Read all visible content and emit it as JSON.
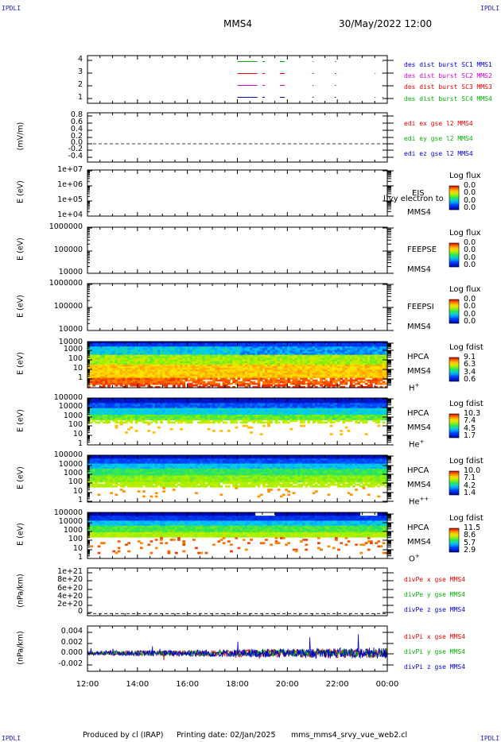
{
  "header": {
    "corner_left": "IPDLI",
    "corner_right": "IPDLI",
    "spacecraft": "MMS4",
    "datetime": "30/May/2022 12:00"
  },
  "footer": {
    "produced_by": "Produced by cl (IRAP)",
    "printing_date": "Printing date: 02/Jan/2025",
    "filename": "mms_mms4_srvy_vue_web2.cl",
    "corner_left": "IPDLI",
    "corner_right": "IPDLI"
  },
  "x_axis": {
    "ticks": [
      "12:00",
      "14:00",
      "16:00",
      "18:00",
      "20:00",
      "22:00",
      "00:00"
    ],
    "range_hours": [
      12,
      24
    ]
  },
  "colors": {
    "blue": "#0000c8",
    "red": "#e00000",
    "green": "#00b000",
    "magenta": "#d000d0"
  },
  "chart_data": [
    {
      "type": "line",
      "id": "burst",
      "y_ticks": [
        "4",
        "3",
        "2",
        "1"
      ],
      "ylim": [
        0.5,
        4.5
      ],
      "legend": [
        {
          "label": "des dist burst SC1 MMS1",
          "color": "#0000c8"
        },
        {
          "label": "des dist burst SC2 MMS2",
          "color": "#d000d0"
        },
        {
          "label": "des dist burst SC3 MMS3",
          "color": "#e00000"
        },
        {
          "label": "des dist burst SC4 MMS4",
          "color": "#00b000"
        }
      ],
      "series": [
        {
          "level": 4,
          "color": "#00b000",
          "segments": [
            [
              18.0,
              18.8
            ],
            [
              19.0,
              19.1
            ],
            [
              19.7,
              19.9
            ],
            [
              21.0,
              21.05
            ],
            [
              21.9,
              21.95
            ],
            [
              23.8,
              23.83
            ]
          ]
        },
        {
          "level": 3,
          "color": "#e00000",
          "segments": [
            [
              18.0,
              18.8
            ],
            [
              19.0,
              19.1
            ],
            [
              19.7,
              19.9
            ],
            [
              21.0,
              21.05
            ],
            [
              21.9,
              21.95
            ],
            [
              23.5,
              23.53
            ],
            [
              23.8,
              23.83
            ]
          ]
        },
        {
          "level": 2,
          "color": "#d000d0",
          "segments": [
            [
              18.0,
              18.8
            ],
            [
              19.0,
              19.1
            ],
            [
              19.7,
              19.9
            ],
            [
              21.0,
              21.05
            ],
            [
              21.9,
              21.95
            ],
            [
              23.8,
              23.83
            ]
          ]
        },
        {
          "level": 1,
          "color": "#0000c8",
          "segments": [
            [
              18.0,
              18.8
            ],
            [
              19.0,
              19.1
            ],
            [
              19.7,
              19.9
            ],
            [
              21.0,
              21.05
            ],
            [
              21.9,
              21.95
            ],
            [
              23.5,
              23.53
            ],
            [
              23.8,
              23.83
            ]
          ]
        }
      ]
    },
    {
      "type": "line",
      "id": "edi",
      "ylabel": "(mV/m)",
      "y_ticks": [
        "0.8",
        "0.6",
        "0.4",
        "0.2",
        "0.0",
        "-0.2",
        "-0.4"
      ],
      "ylim": [
        -0.5,
        0.85
      ],
      "zero_line": 0.0,
      "legend": [
        {
          "label": "edi ex gse l2 MMS4",
          "color": "#e00000"
        },
        {
          "label": "edi ey gse l2 MMS4",
          "color": "#00b000"
        },
        {
          "label": "edi ez gse l2 MMS4",
          "color": "#0000c8"
        }
      ]
    },
    {
      "type": "heatmap",
      "id": "eis",
      "ylabel": "E (eV)",
      "y_ticks": [
        "1e+07",
        "1e+06",
        "1e+05",
        "1e+04"
      ],
      "log": true,
      "instrument": [
        "EIS",
        "MMS4"
      ],
      "overlay_text": "l)vy electron to",
      "cbar_title": "Log flux",
      "cbar_values": [
        "0.0",
        "0.0",
        "0.0",
        "0.0"
      ],
      "empty": true
    },
    {
      "type": "heatmap",
      "id": "feepse",
      "ylabel": "E (eV)",
      "y_ticks": [
        "1000000",
        "100000",
        "10000"
      ],
      "log": true,
      "instrument": [
        "FEEPSE",
        "MMS4"
      ],
      "cbar_title": "Log flux",
      "cbar_values": [
        "0.0",
        "0.0",
        "0.0",
        "0.0"
      ],
      "empty": true
    },
    {
      "type": "heatmap",
      "id": "feepsi",
      "ylabel": "E (eV)",
      "y_ticks": [
        "1000000",
        "100000",
        "10000"
      ],
      "log": true,
      "instrument": [
        "FEEPSI",
        "MMS4"
      ],
      "cbar_title": "Log flux",
      "cbar_values": [
        "0.0",
        "0.0",
        "0.0",
        "0.0"
      ],
      "empty": true
    },
    {
      "type": "heatmap",
      "id": "hpca_h",
      "ylabel": "E (eV)",
      "y_ticks": [
        "10000",
        "1000",
        "100",
        "10",
        "1"
      ],
      "log": true,
      "instrument": [
        "HPCA",
        "MMS4"
      ],
      "species": "H",
      "species_sup": "+",
      "cbar_title": "Log fdist",
      "cbar_values": [
        "9.1",
        "6.3",
        "3.4",
        "0.6"
      ],
      "profile": "hplus"
    },
    {
      "type": "heatmap",
      "id": "hpca_he",
      "ylabel": "E (eV)",
      "y_ticks": [
        "100000",
        "10000",
        "1000",
        "100",
        "10",
        "1"
      ],
      "log": true,
      "instrument": [
        "HPCA",
        "MMS4"
      ],
      "species": "He",
      "species_sup": "+",
      "cbar_title": "Log fdist",
      "cbar_values": [
        "10.3",
        "7.4",
        "4.5",
        "1.7"
      ],
      "profile": "heplus"
    },
    {
      "type": "heatmap",
      "id": "hpca_hepp",
      "ylabel": "E (eV)",
      "y_ticks": [
        "100000",
        "10000",
        "1000",
        "100",
        "10",
        "1"
      ],
      "log": true,
      "instrument": [
        "HPCA",
        "MMS4"
      ],
      "species": "He",
      "species_sup": "++",
      "cbar_title": "Log fdist",
      "cbar_values": [
        "10.0",
        "7.1",
        "4.2",
        "1.4"
      ],
      "profile": "heplusplus"
    },
    {
      "type": "heatmap",
      "id": "hpca_o",
      "ylabel": "E (eV)",
      "y_ticks": [
        "100000",
        "10000",
        "1000",
        "100",
        "10",
        "1"
      ],
      "log": true,
      "instrument": [
        "HPCA",
        "MMS4"
      ],
      "species": "O",
      "species_sup": "+",
      "cbar_title": "Log fdist",
      "cbar_values": [
        "11.5",
        "8.6",
        "5.7",
        "2.9"
      ],
      "profile": "oplus"
    },
    {
      "type": "line",
      "id": "divpe",
      "ylabel": "(nPa/km)",
      "y_ticks": [
        "1e+21",
        "8e+20",
        "6e+20",
        "4e+20",
        "2e+20",
        "0"
      ],
      "ylim": [
        -5e+19,
        1.05e+21
      ],
      "zero_line": 0,
      "legend": [
        {
          "label": "divPe x gse MMS4",
          "color": "#e00000"
        },
        {
          "label": "divPe y gse MMS4",
          "color": "#00b000"
        },
        {
          "label": "divPe z gse MMS4",
          "color": "#0000c8"
        }
      ]
    },
    {
      "type": "line",
      "id": "divpi",
      "ylabel": "(nPa/km)",
      "y_ticks": [
        "0.004",
        "0.002",
        "0.000",
        "-0.002"
      ],
      "ylim": [
        -0.0032,
        0.0048
      ],
      "legend": [
        {
          "label": "divPi x gse MMS4",
          "color": "#e00000"
        },
        {
          "label": "divPi y gse MMS4",
          "color": "#00b000"
        },
        {
          "label": "divPi z gse MMS4",
          "color": "#0000c8"
        }
      ]
    }
  ]
}
